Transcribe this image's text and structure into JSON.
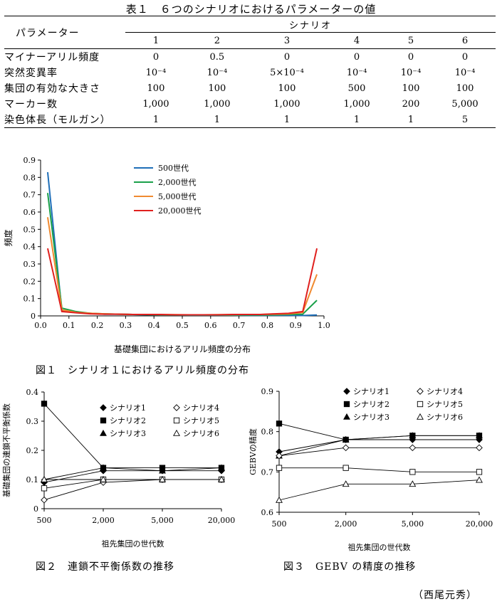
{
  "table1": {
    "caption": "表１　６つのシナリオにおけるパラメーターの値",
    "param_header": "パラメーター",
    "scenario_header": "シナリオ",
    "scenario_numbers": [
      "1",
      "2",
      "3",
      "4",
      "5",
      "6"
    ],
    "rows": [
      {
        "label": "マイナーアリル頻度",
        "values": [
          "0",
          "0.5",
          "0",
          "0",
          "0",
          "0"
        ]
      },
      {
        "label": "突然変異率",
        "values": [
          "10⁻⁴",
          "10⁻⁴",
          "5×10⁻⁴",
          "10⁻⁴",
          "10⁻⁴",
          "10⁻⁴"
        ]
      },
      {
        "label": "集団の有効な大きさ",
        "values": [
          "100",
          "100",
          "100",
          "500",
          "100",
          "100"
        ]
      },
      {
        "label": "マーカー数",
        "values": [
          "1,000",
          "1,000",
          "1,000",
          "1,000",
          "200",
          "5,000"
        ]
      },
      {
        "label": "染色体長（モルガン）",
        "values": [
          "1",
          "1",
          "1",
          "1",
          "1",
          "5"
        ]
      }
    ]
  },
  "chart_data": [
    {
      "type": "line",
      "title": "図１　シナリオ１におけるアリル頻度の分布",
      "xlabel": "基礎集団におけるアリル頻度の分布",
      "ylabel": "頻度",
      "xlim": [
        0,
        1
      ],
      "ylim": [
        0,
        0.9
      ],
      "x_ticks": [
        "0.0",
        "0.1",
        "0.2",
        "0.3",
        "0.4",
        "0.5",
        "0.6",
        "0.7",
        "0.8",
        "0.9",
        "1.0"
      ],
      "y_ticks": [
        "0",
        "0.1",
        "0.2",
        "0.3",
        "0.4",
        "0.5",
        "0.6",
        "0.7",
        "0.8",
        "0.9"
      ],
      "legend_position": "top-center",
      "x": [
        0.025,
        0.075,
        0.125,
        0.175,
        0.225,
        0.275,
        0.325,
        0.375,
        0.425,
        0.475,
        0.525,
        0.575,
        0.625,
        0.675,
        0.725,
        0.775,
        0.825,
        0.875,
        0.925,
        0.975
      ],
      "series": [
        {
          "name": "500世代",
          "color": "#1f6fb8",
          "values": [
            0.83,
            0.03,
            0.02,
            0.015,
            0.01,
            0.01,
            0.008,
            0.006,
            0.005,
            0.005,
            0.004,
            0.004,
            0.004,
            0.004,
            0.003,
            0.003,
            0.003,
            0.003,
            0.002,
            0.005
          ]
        },
        {
          "name": "2,000世代",
          "color": "#1aa04a",
          "values": [
            0.71,
            0.045,
            0.025,
            0.015,
            0.012,
            0.01,
            0.008,
            0.007,
            0.006,
            0.005,
            0.005,
            0.005,
            0.005,
            0.005,
            0.005,
            0.005,
            0.006,
            0.008,
            0.01,
            0.09
          ]
        },
        {
          "name": "5,000世代",
          "color": "#f08a30",
          "values": [
            0.57,
            0.035,
            0.02,
            0.015,
            0.012,
            0.01,
            0.008,
            0.008,
            0.007,
            0.007,
            0.006,
            0.006,
            0.007,
            0.007,
            0.008,
            0.008,
            0.01,
            0.012,
            0.02,
            0.24
          ]
        },
        {
          "name": "20,000世代",
          "color": "#e0201e",
          "values": [
            0.39,
            0.025,
            0.018,
            0.012,
            0.01,
            0.01,
            0.008,
            0.008,
            0.008,
            0.006,
            0.006,
            0.006,
            0.006,
            0.008,
            0.008,
            0.008,
            0.012,
            0.015,
            0.025,
            0.39
          ]
        }
      ]
    },
    {
      "type": "line",
      "title": "図２　連鎖不平衡係数の推移",
      "xlabel": "祖先集団の世代数",
      "ylabel": "基礎集団の連鎖不平衡係数",
      "categories": [
        "500",
        "2,000",
        "5,000",
        "20,000"
      ],
      "ylim": [
        0,
        0.4
      ],
      "y_ticks": [
        "0",
        "0.1",
        "0.2",
        "0.3",
        "0.4"
      ],
      "series": [
        {
          "name": "シナリオ1",
          "marker": "◆",
          "shape": "diamond-filled",
          "values": [
            0.09,
            0.13,
            0.13,
            0.13
          ]
        },
        {
          "name": "シナリオ2",
          "marker": "■",
          "shape": "square-filled",
          "values": [
            0.36,
            0.14,
            0.14,
            0.14
          ]
        },
        {
          "name": "シナリオ3",
          "marker": "▲",
          "shape": "triangle-filled",
          "values": [
            0.1,
            0.14,
            0.13,
            0.14
          ]
        },
        {
          "name": "シナリオ4",
          "marker": "◇",
          "shape": "diamond-open",
          "values": [
            0.03,
            0.09,
            0.1,
            0.1
          ]
        },
        {
          "name": "シナリオ5",
          "marker": "□",
          "shape": "square-open",
          "values": [
            0.07,
            0.1,
            0.1,
            0.1
          ]
        },
        {
          "name": "シナリオ6",
          "marker": "△",
          "shape": "triangle-open",
          "values": [
            0.1,
            0.1,
            0.1,
            0.1
          ]
        }
      ]
    },
    {
      "type": "line",
      "title": "図３　GEBV の精度の推移",
      "xlabel": "祖先集団の世代数",
      "ylabel": "GEBVの精度",
      "categories": [
        "500",
        "2,000",
        "5,000",
        "20,000"
      ],
      "ylim": [
        0.6,
        0.9
      ],
      "y_ticks": [
        "0.6",
        "0.7",
        "0.8",
        "0.9"
      ],
      "series": [
        {
          "name": "シナリオ1",
          "marker": "◆",
          "shape": "diamond-filled",
          "values": [
            0.75,
            0.78,
            0.78,
            0.78
          ]
        },
        {
          "name": "シナリオ2",
          "marker": "■",
          "shape": "square-filled",
          "values": [
            0.82,
            0.78,
            0.79,
            0.79
          ]
        },
        {
          "name": "シナリオ3",
          "marker": "▲",
          "shape": "triangle-filled",
          "values": [
            0.74,
            0.78,
            0.79,
            0.79
          ]
        },
        {
          "name": "シナリオ4",
          "marker": "◇",
          "shape": "diamond-open",
          "values": [
            0.74,
            0.76,
            0.76,
            0.76
          ]
        },
        {
          "name": "シナリオ5",
          "marker": "□",
          "shape": "square-open",
          "values": [
            0.71,
            0.71,
            0.7,
            0.7
          ]
        },
        {
          "name": "シナリオ6",
          "marker": "△",
          "shape": "triangle-open",
          "values": [
            0.63,
            0.67,
            0.67,
            0.68
          ]
        }
      ]
    }
  ],
  "author": "（西尾元秀）"
}
